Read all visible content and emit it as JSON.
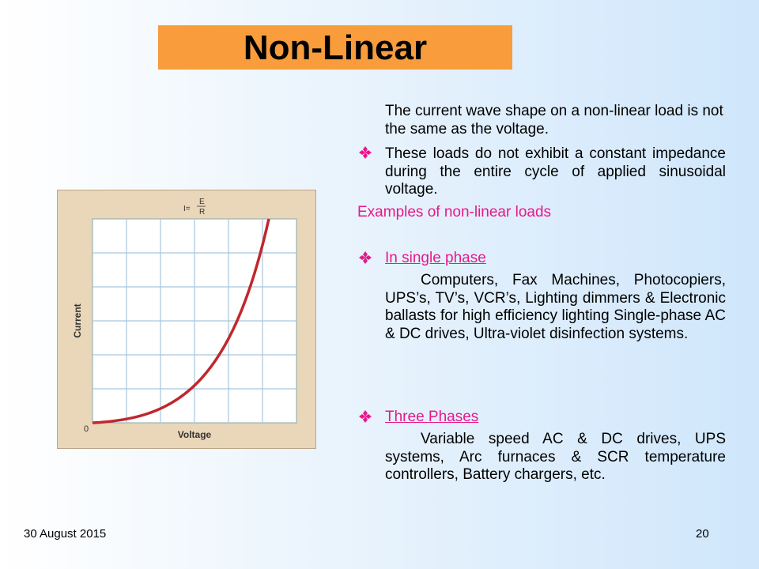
{
  "title": "Non-Linear",
  "intro": "The current wave shape on a non-linear load is not the same as the voltage.",
  "bullet": "These loads do not exhibit a constant impedance during the entire cycle of applied sinusoidal voltage.",
  "examples_heading": "Examples of non-linear loads",
  "sections": [
    {
      "heading": "In single phase",
      "text": "Computers, Fax Machines, Photocopiers, UPS’s, TV’s, VCR’s, Lighting dimmers & Electronic ballasts for high efficiency lighting Single-phase AC & DC drives, Ultra-violet disinfection systems."
    },
    {
      "heading": "Three Phases",
      "text": "Variable speed AC & DC drives, UPS systems, Arc furnaces & SCR temperature controllers, Battery chargers, etc."
    }
  ],
  "figure": {
    "formula": {
      "lhs": "I=",
      "numerator": "E",
      "denominator": "R"
    },
    "y_label": "Current",
    "x_label": "Voltage",
    "origin": "0"
  },
  "footer": {
    "date": "30 August 2015",
    "page": "20"
  }
}
